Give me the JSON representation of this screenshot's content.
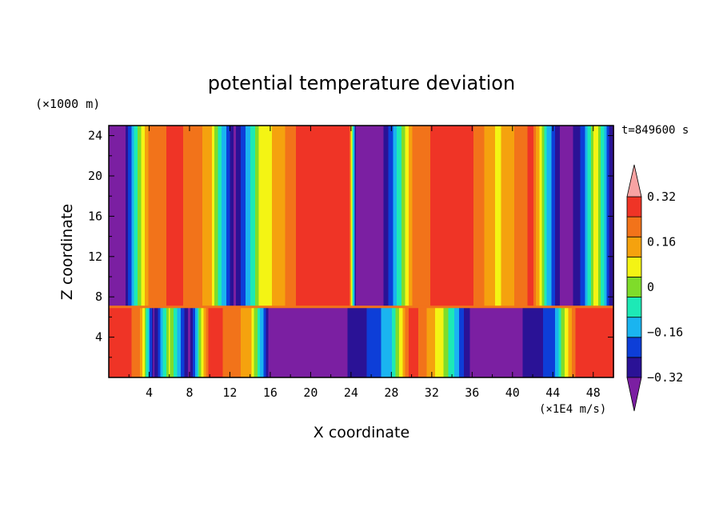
{
  "chart_data": {
    "type": "heatmap",
    "title": "potential temperature deviation",
    "xlabel": "X coordinate",
    "ylabel": "Z coordinate",
    "x_unit": "(×1E4 m/s)",
    "y_unit": "(×1000 m)",
    "time_label": "t=849600 s",
    "xlim": [
      0,
      50
    ],
    "ylim": [
      0,
      25
    ],
    "x_ticks": [
      "4",
      "8",
      "12",
      "16",
      "20",
      "24",
      "28",
      "32",
      "36",
      "40",
      "44",
      "48"
    ],
    "x_tick_values": [
      4,
      8,
      12,
      16,
      20,
      24,
      28,
      32,
      36,
      40,
      44,
      48
    ],
    "y_ticks": [
      "4",
      "8",
      "12",
      "16",
      "20",
      "24"
    ],
    "y_tick_values": [
      4,
      8,
      12,
      16,
      20,
      24
    ],
    "colorbar": {
      "labels": [
        "0.32",
        "0.16",
        "0",
        "−0.16",
        "−0.32"
      ],
      "label_values": [
        0.32,
        0.16,
        0,
        -0.16,
        -0.32
      ],
      "levels": [
        -0.4,
        -0.32,
        -0.24,
        -0.16,
        -0.08,
        0,
        0.08,
        0.16,
        0.24,
        0.32,
        0.4
      ],
      "colors": [
        "#7b1fa2",
        "#2a1296",
        "#0d3ed8",
        "#1ab4f0",
        "#1de9b6",
        "#7fdc2a",
        "#f4f414",
        "#f5a20e",
        "#f2731a",
        "#ef3426",
        "#f7a3a3"
      ],
      "extend": "both"
    },
    "fields": {
      "upper_layer_top_z": 7,
      "upper_columns": [
        {
          "x": 0.0,
          "value": -0.36
        },
        {
          "x": 1.5,
          "value": -0.36
        },
        {
          "x": 2.8,
          "value": 0.0
        },
        {
          "x": 4.0,
          "value": 0.26
        },
        {
          "x": 6.5,
          "value": 0.35
        },
        {
          "x": 8.5,
          "value": 0.28
        },
        {
          "x": 10.0,
          "value": 0.2
        },
        {
          "x": 11.2,
          "value": -0.08
        },
        {
          "x": 12.5,
          "value": -0.34
        },
        {
          "x": 13.8,
          "value": -0.12
        },
        {
          "x": 15.0,
          "value": 0.1
        },
        {
          "x": 17.0,
          "value": 0.2
        },
        {
          "x": 19.0,
          "value": 0.36
        },
        {
          "x": 22.0,
          "value": 0.4
        },
        {
          "x": 23.8,
          "value": 0.38
        },
        {
          "x": 24.5,
          "value": -0.36
        },
        {
          "x": 27.0,
          "value": -0.36
        },
        {
          "x": 28.0,
          "value": -0.2
        },
        {
          "x": 29.2,
          "value": 0.05
        },
        {
          "x": 30.2,
          "value": 0.26
        },
        {
          "x": 33.0,
          "value": 0.36
        },
        {
          "x": 36.0,
          "value": 0.33
        },
        {
          "x": 38.5,
          "value": 0.14
        },
        {
          "x": 40.5,
          "value": 0.26
        },
        {
          "x": 42.0,
          "value": 0.35
        },
        {
          "x": 43.5,
          "value": -0.1
        },
        {
          "x": 44.8,
          "value": -0.34
        },
        {
          "x": 46.0,
          "value": -0.32
        },
        {
          "x": 47.0,
          "value": -0.2
        },
        {
          "x": 48.3,
          "value": 0.14
        },
        {
          "x": 50.0,
          "value": -0.36
        }
      ],
      "lower_columns": [
        {
          "x": 0.0,
          "value": 0.38
        },
        {
          "x": 3.0,
          "value": 0.3
        },
        {
          "x": 4.5,
          "value": -0.34
        },
        {
          "x": 6.0,
          "value": 0.1
        },
        {
          "x": 8.0,
          "value": -0.36
        },
        {
          "x": 10.0,
          "value": 0.38
        },
        {
          "x": 14.0,
          "value": 0.2
        },
        {
          "x": 16.0,
          "value": -0.36
        },
        {
          "x": 22.0,
          "value": -0.36
        },
        {
          "x": 24.5,
          "value": -0.3
        },
        {
          "x": 28.0,
          "value": -0.1
        },
        {
          "x": 30.0,
          "value": 0.38
        },
        {
          "x": 33.0,
          "value": 0.1
        },
        {
          "x": 36.0,
          "value": -0.36
        },
        {
          "x": 40.0,
          "value": -0.36
        },
        {
          "x": 44.0,
          "value": -0.2
        },
        {
          "x": 46.5,
          "value": 0.38
        },
        {
          "x": 50.0,
          "value": 0.36
        }
      ]
    }
  }
}
